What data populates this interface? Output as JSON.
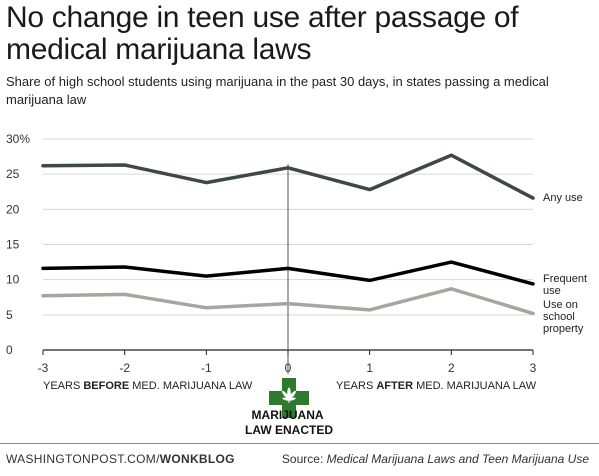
{
  "title": "No change in teen use after passage of medical marijuana laws",
  "subtitle": "Share of high school students using marijuana in the past 30 days, in states passing a medical marijuana law",
  "chart_data": {
    "type": "line",
    "x": [
      -3,
      -2,
      -1,
      0,
      1,
      2,
      3
    ],
    "x_ticks": [
      "-3",
      "-2",
      "-1",
      "0",
      "1",
      "2",
      "3"
    ],
    "y_ticks": [
      "0",
      "5",
      "10",
      "15",
      "20",
      "25",
      "30%"
    ],
    "ylim": [
      0,
      30
    ],
    "xlim": [
      -3,
      3
    ],
    "grid": true,
    "series": [
      {
        "name": "Any use",
        "values": [
          26.2,
          26.3,
          23.8,
          25.9,
          22.8,
          27.7,
          21.6
        ],
        "color": "#3d4a3d",
        "width": 3.5
      },
      {
        "name": "Frequent use",
        "values": [
          11.6,
          11.8,
          10.5,
          11.6,
          9.9,
          12.5,
          9.4
        ],
        "color": "#000000",
        "width": 3.5
      },
      {
        "name": "Use on school property",
        "values": [
          7.7,
          7.9,
          6.0,
          6.6,
          5.7,
          8.7,
          5.2
        ],
        "color": "#a4a6a2",
        "width": 3.5
      }
    ],
    "annotations": {
      "years_before": {
        "pre": "YEARS ",
        "bold": "BEFORE",
        "post": " MED. MARIJUANA LAW"
      },
      "years_after": {
        "pre": "YEARS ",
        "bold": "AFTER",
        "post": " MED. MARIJUANA LAW"
      },
      "law_enacted": [
        "MARIJUANA",
        "LAW ENACTED"
      ]
    }
  },
  "series_labels": {
    "any_use": [
      "Any use"
    ],
    "frequent_use": [
      "Frequent",
      "use"
    ],
    "school_property": [
      "Use on",
      "school",
      "property"
    ]
  },
  "footer": {
    "site": "WASHINGTONPOST.COM/",
    "brand": "WONKBLOG",
    "source_prefix": "Source: ",
    "source_title": "Medical Marijuana Laws and Teen Marijuana Use"
  },
  "colors": {
    "grid": "#d6d6d6",
    "axis": "#222222",
    "cross": "#2f7a2c",
    "leaf": "#ffffff"
  }
}
